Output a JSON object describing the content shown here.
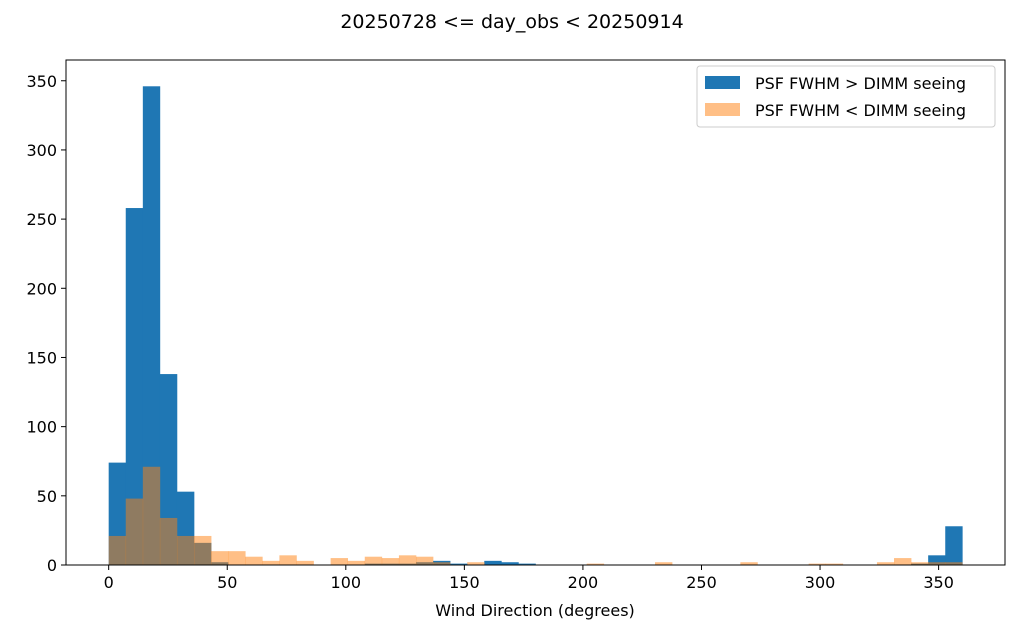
{
  "chart_data": {
    "type": "bar",
    "title": "20250728 <= day_obs < 20250914",
    "xlabel": "Wind Direction (degrees)",
    "ylabel": "",
    "xlim": [
      -18,
      378
    ],
    "ylim": [
      0,
      365
    ],
    "xticks": [
      0,
      50,
      100,
      150,
      200,
      250,
      300,
      350
    ],
    "yticks": [
      0,
      50,
      100,
      150,
      200,
      250,
      300,
      350
    ],
    "bin_width": 7.2,
    "bin_start": 0,
    "grid": false,
    "legend_position": "top-right",
    "series": [
      {
        "name": "PSF FWHM > DIMM seeing",
        "color": "#1f77b4",
        "alpha": 1.0,
        "values": [
          74,
          258,
          346,
          138,
          53,
          16,
          2,
          0,
          0,
          0,
          0,
          0,
          0,
          0,
          0,
          1,
          1,
          1,
          2,
          3,
          1,
          0,
          3,
          2,
          1,
          0,
          0,
          0,
          0,
          0,
          0,
          0,
          0,
          0,
          0,
          0,
          0,
          0,
          0,
          0,
          0,
          0,
          0,
          0,
          0,
          0,
          0,
          1,
          7,
          28
        ]
      },
      {
        "name": "PSF FWHM < DIMM seeing",
        "color": "#ff7f0e",
        "alpha": 0.5,
        "values": [
          21,
          48,
          71,
          34,
          21,
          21,
          10,
          10,
          6,
          3,
          7,
          3,
          0,
          5,
          3,
          6,
          5,
          7,
          6,
          2,
          0,
          2,
          0,
          0,
          0,
          0,
          0,
          0,
          1,
          0,
          0,
          0,
          2,
          0,
          0,
          0,
          0,
          2,
          0,
          0,
          0,
          1,
          1,
          0,
          0,
          2,
          5,
          2,
          2,
          2
        ]
      }
    ]
  }
}
